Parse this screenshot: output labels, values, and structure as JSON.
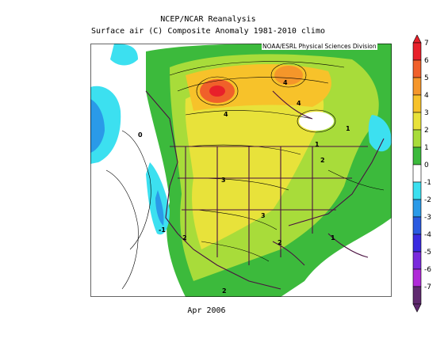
{
  "header": {
    "title_line1": "NCEP/NCAR Reanalysis",
    "title_line2": "Surface air (C) Composite Anomaly 1981-2010 climo",
    "credit": "NOAA/ESRL Physical Sciences Division"
  },
  "footer": {
    "caption": "Apr 2006"
  },
  "legend": {
    "labels": [
      "7",
      "6",
      "5",
      "4",
      "3",
      "2",
      "1",
      "0",
      "-1",
      "-2",
      "-3",
      "-4",
      "-5",
      "-6",
      "-7"
    ],
    "colors": [
      "#e8202a",
      "#f0602a",
      "#f5962a",
      "#f7c22a",
      "#e8e23a",
      "#a8dc3a",
      "#3cba3c",
      "#ffffff",
      "#3ce0f0",
      "#2a9ae8",
      "#2a5ae0",
      "#3a2ae0",
      "#7a2adc",
      "#b02ad8",
      "#602a70"
    ]
  },
  "contour_labels": [
    "4",
    "4",
    "4",
    "2",
    "1",
    "1",
    "3",
    "3",
    "2",
    "2",
    "1",
    "2",
    "-1",
    "0"
  ]
}
